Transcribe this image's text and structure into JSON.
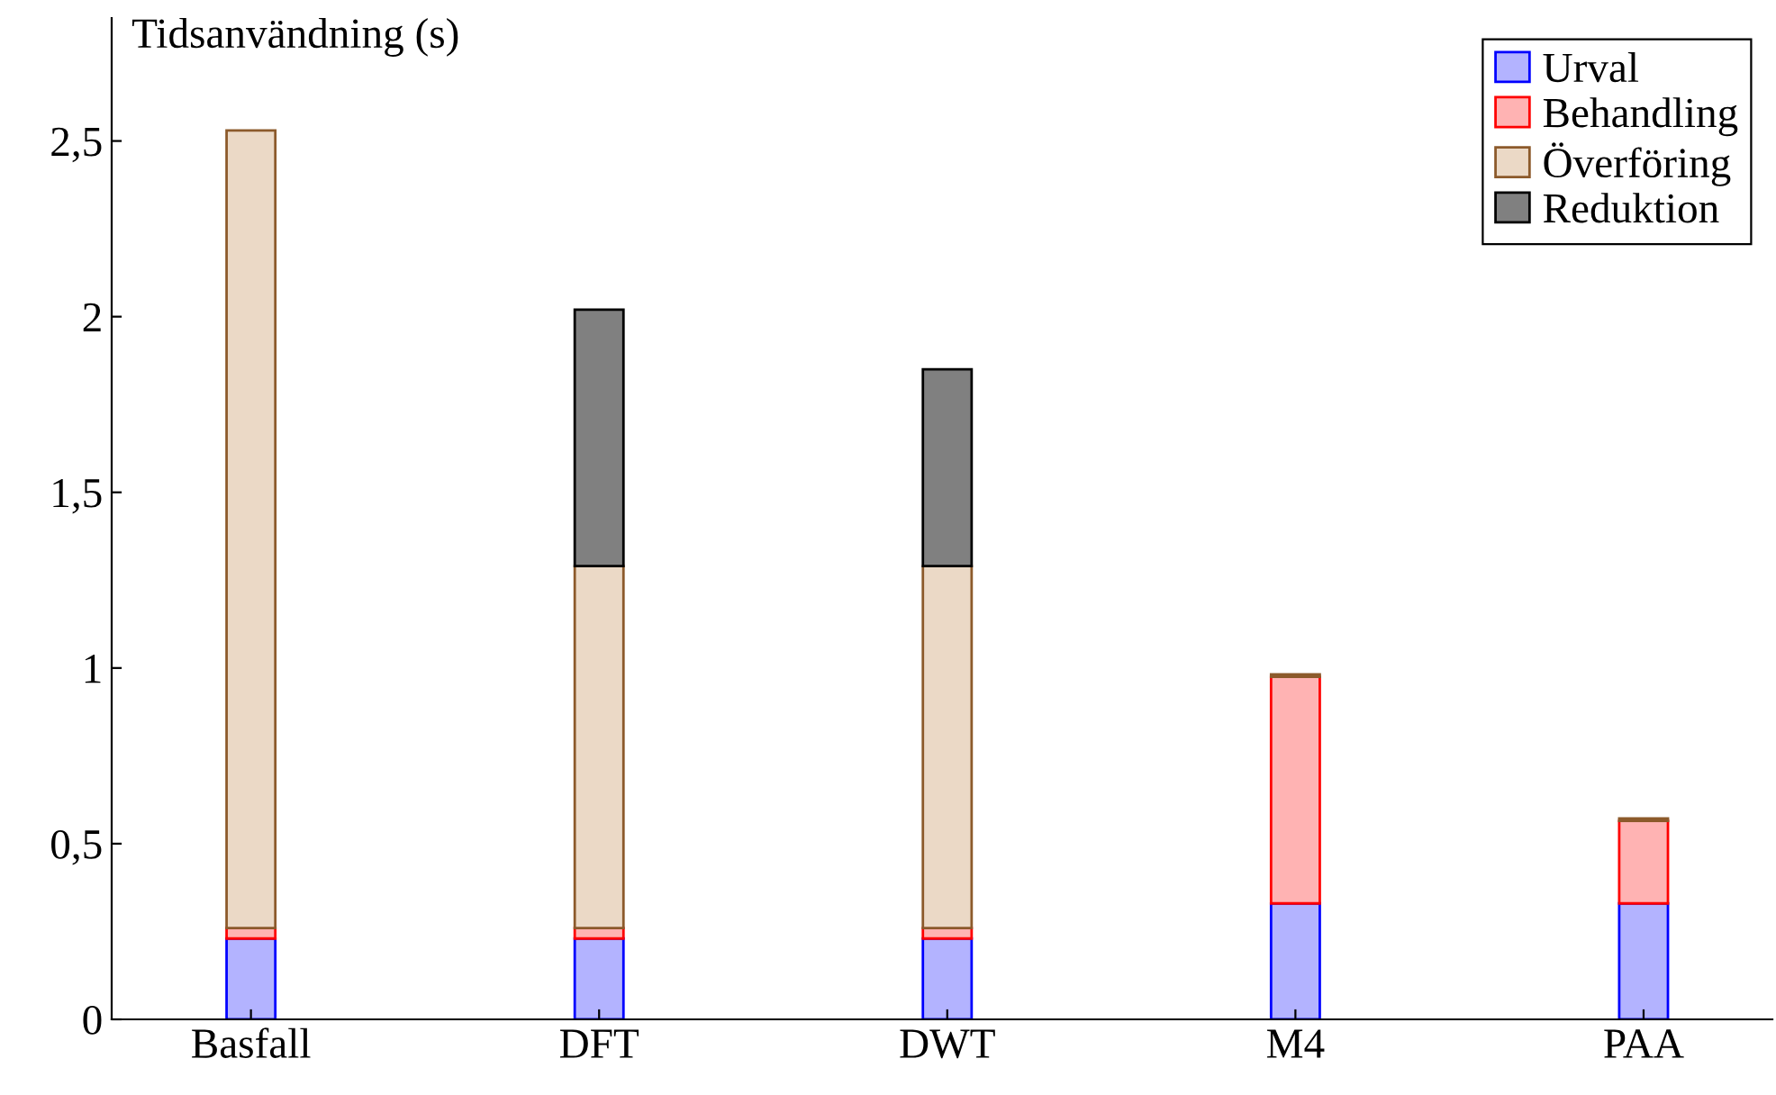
{
  "chart_data": {
    "type": "bar",
    "stacked": true,
    "ylabel": "Tidsanvändning (s)",
    "categories": [
      "Basfall",
      "DFT",
      "DWT",
      "M4",
      "PAA"
    ],
    "series": [
      {
        "name": "Urval",
        "color": "#b3b3ff",
        "values": [
          0.23,
          0.23,
          0.23,
          0.33,
          0.33
        ]
      },
      {
        "name": "Behandling",
        "color": "#ffb3b3",
        "values": [
          0.03,
          0.03,
          0.03,
          0.645,
          0.235
        ]
      },
      {
        "name": "Överföring",
        "color": "#ebd9c6",
        "values": [
          2.27,
          1.03,
          1.03,
          0.007,
          0.007
        ]
      },
      {
        "name": "Reduktion",
        "color": "#808080",
        "values": [
          null,
          0.73,
          0.56,
          null,
          null
        ]
      }
    ],
    "ylim": [
      0,
      2.85
    ],
    "yticks": [
      0,
      {
        "value": 0.5,
        "label": "0,5"
      },
      1,
      {
        "value": 1.5,
        "label": "1,5"
      },
      2,
      {
        "value": 2.5,
        "label": "2,5"
      }
    ],
    "grid": false,
    "legend": "top right"
  }
}
